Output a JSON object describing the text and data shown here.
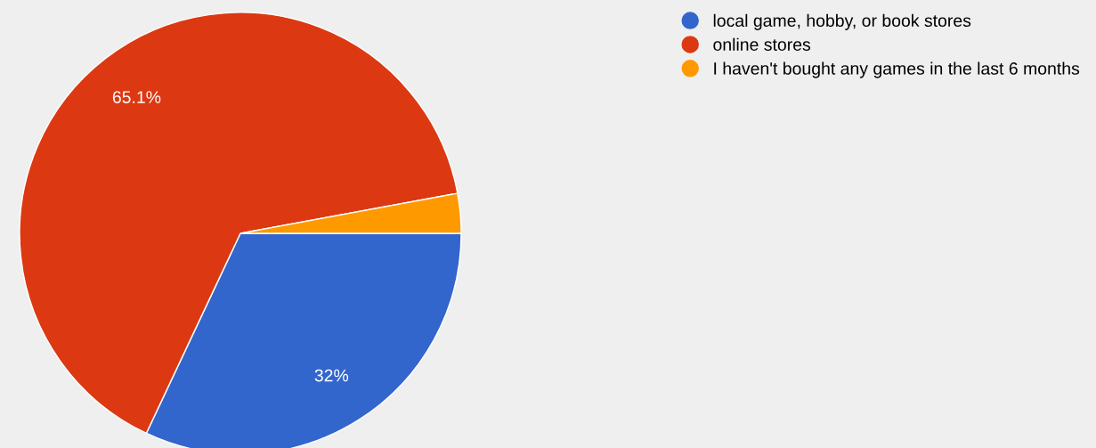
{
  "chart_data": {
    "type": "pie",
    "categories": [
      "local game, hobby, or book stores",
      "online stores",
      "I haven't bought any games in the last 6 months"
    ],
    "values": [
      32,
      65.1,
      2.9
    ],
    "colors": [
      "#3366cc",
      "#dc3912",
      "#ff9900"
    ],
    "value_labels": [
      "32%",
      "65.1%",
      null
    ],
    "legend": "top right"
  }
}
